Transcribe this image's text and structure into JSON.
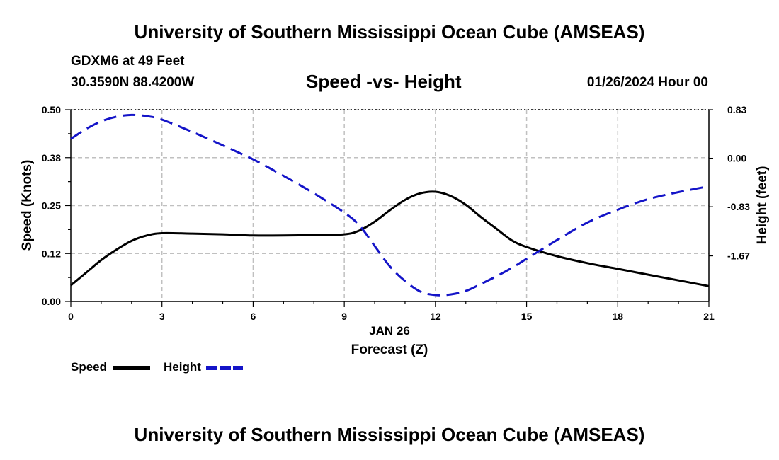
{
  "header": {
    "title": "University of Southern Mississippi Ocean Cube (AMSEAS)",
    "station": "GDXM6 at 49 Feet",
    "coords": "30.3590N  88.4200W",
    "date": "01/26/2024 Hour 00",
    "footer_title": "University of Southern Mississippi Ocean Cube (AMSEAS)"
  },
  "legend": {
    "speed_label": "Speed",
    "height_label": "Height"
  },
  "colors": {
    "speed": "#000000",
    "height": "#1414c8",
    "grid": "#c0c0c0"
  },
  "chart_data": {
    "type": "line",
    "title": "Speed -vs- Height",
    "xlabel": "Forecast (Z)",
    "xsublabel": "JAN 26",
    "ylabel": "Speed (Knots)",
    "y2label": "Height (feet)",
    "xlim": [
      0,
      21
    ],
    "ylim": [
      0,
      0.5
    ],
    "y2lim": [
      -2.45,
      0.83
    ],
    "xticks": [
      0,
      3,
      6,
      9,
      12,
      15,
      18,
      21
    ],
    "yticks": [
      0,
      0.125,
      0.25,
      0.375,
      0.5
    ],
    "ytick_labels": [
      "0.00",
      "0.12",
      "0.25",
      "0.38",
      "0.50"
    ],
    "y2ticks": [
      -1.67,
      -0.83,
      0,
      0.83
    ],
    "y2tick_labels": [
      "-1.67",
      "-0.83",
      "0.00",
      "0.83"
    ],
    "grid": true,
    "series": [
      {
        "name": "Speed",
        "axis": "left",
        "style": "solid",
        "x": [
          0,
          0.5,
          1,
          1.5,
          2,
          2.5,
          3,
          4,
          5,
          6,
          7,
          8,
          9,
          9.5,
          10,
          10.5,
          11,
          11.5,
          12,
          12.5,
          13,
          13.5,
          14,
          14.5,
          15,
          16,
          17,
          18,
          19,
          20,
          21
        ],
        "values": [
          0.042,
          0.075,
          0.108,
          0.135,
          0.158,
          0.172,
          0.178,
          0.177,
          0.175,
          0.172,
          0.172,
          0.173,
          0.175,
          0.185,
          0.208,
          0.238,
          0.265,
          0.282,
          0.286,
          0.275,
          0.252,
          0.22,
          0.19,
          0.16,
          0.142,
          0.118,
          0.1,
          0.085,
          0.07,
          0.055,
          0.04
        ]
      },
      {
        "name": "Height",
        "axis": "right",
        "style": "dashed",
        "x": [
          0,
          0.5,
          1,
          1.5,
          2,
          2.5,
          3,
          4,
          5,
          6,
          7,
          8,
          9,
          9.5,
          10,
          10.5,
          11,
          11.5,
          12,
          12.5,
          13,
          13.5,
          14,
          14.5,
          15,
          16,
          17,
          18,
          19,
          20,
          21
        ],
        "values": [
          0.33,
          0.5,
          0.63,
          0.71,
          0.74,
          0.72,
          0.66,
          0.45,
          0.22,
          -0.02,
          -0.3,
          -0.6,
          -0.93,
          -1.15,
          -1.5,
          -1.85,
          -2.1,
          -2.28,
          -2.34,
          -2.33,
          -2.27,
          -2.15,
          -2.02,
          -1.88,
          -1.72,
          -1.4,
          -1.1,
          -0.88,
          -0.7,
          -0.58,
          -0.48
        ]
      }
    ]
  }
}
